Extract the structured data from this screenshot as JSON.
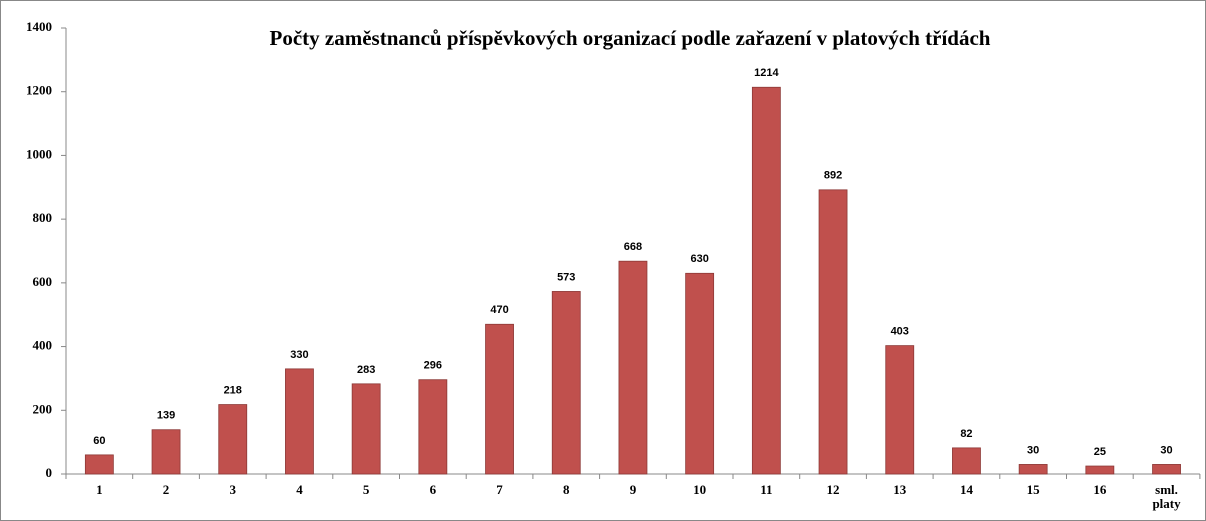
{
  "chart_data": {
    "type": "bar",
    "title": "Počty zaměstnanců příspěvkových organizací podle zařazení v platových třídách",
    "categories": [
      "1",
      "2",
      "3",
      "4",
      "5",
      "6",
      "7",
      "8",
      "9",
      "10",
      "11",
      "12",
      "13",
      "14",
      "15",
      "16",
      "sml. platy"
    ],
    "values": [
      60,
      139,
      218,
      330,
      283,
      296,
      470,
      573,
      668,
      630,
      1214,
      892,
      403,
      82,
      30,
      25,
      30
    ],
    "color": "#c0504d",
    "ylim": [
      0,
      1400
    ],
    "yticks": [
      0,
      200,
      400,
      600,
      800,
      1000,
      1200,
      1400
    ],
    "grid": false
  }
}
